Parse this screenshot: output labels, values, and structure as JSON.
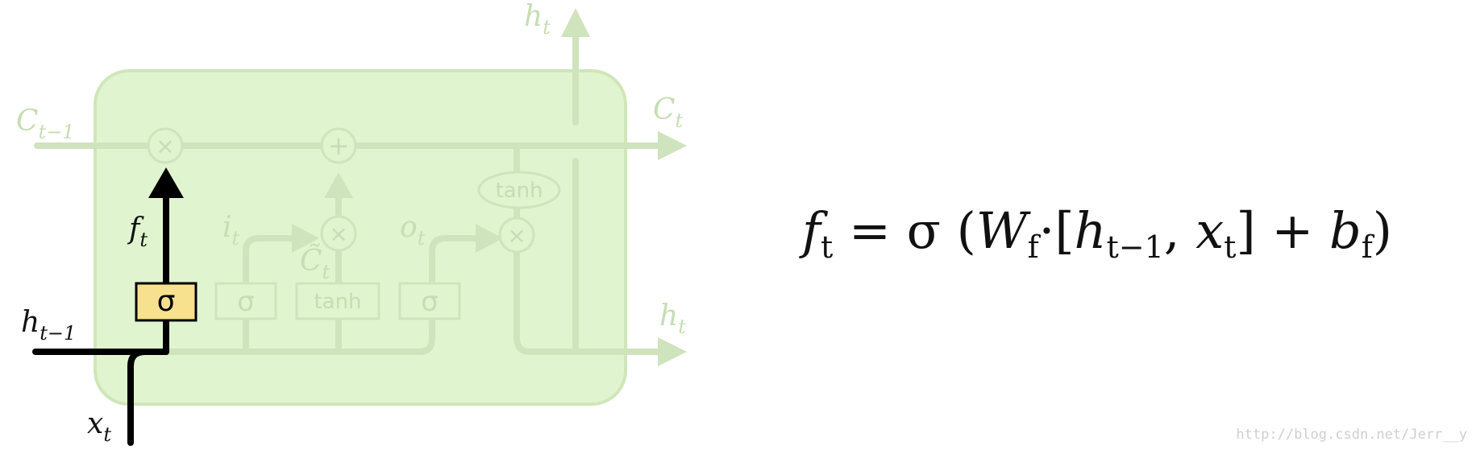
{
  "colors": {
    "cell_fill": "#e0f5cf",
    "cell_stroke": "#cfe6b9",
    "faded_line": "#cfe3bd",
    "faded_text": "#c6ddb3",
    "highlight_line": "#000000",
    "sigma_box_fill": "#f7e18f"
  },
  "labels": {
    "c_prev": [
      "C",
      "t−1"
    ],
    "c_out": [
      "C",
      "t"
    ],
    "h_top": [
      "h",
      "t"
    ],
    "h_right": [
      "h",
      "t"
    ],
    "h_prev": [
      "h",
      "t−1"
    ],
    "x_in": [
      "x",
      "t"
    ],
    "f": [
      "f",
      "t"
    ],
    "i": [
      "i",
      "t"
    ],
    "o": [
      "o",
      "t"
    ],
    "c_tilde": [
      "C̃",
      "t"
    ]
  },
  "ops": {
    "multiply": "×",
    "plus": "+",
    "sigma": "σ",
    "tanh": "tanh"
  },
  "equation": {
    "f": "f",
    "f_sub": "t",
    "eq": " = σ (",
    "w": "W",
    "w_sub": "f",
    "dot_open": "·[",
    "h": "h",
    "h_sub": "t−1",
    "comma": ", ",
    "x": "x",
    "x_sub": "t",
    "close_plus": "]  +  ",
    "b": "b",
    "b_sub": "f",
    "close": ")"
  },
  "watermark": "http://blog.csdn.net/Jerr__y"
}
